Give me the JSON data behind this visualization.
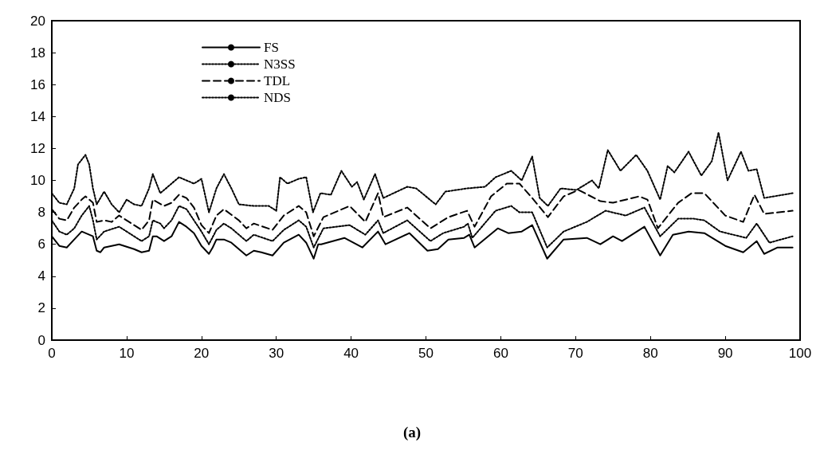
{
  "chart_data": {
    "type": "line",
    "annotations": [
      "(a)"
    ],
    "xlim": [
      0,
      100
    ],
    "xticks": [
      0,
      10,
      20,
      30,
      40,
      50,
      60,
      70,
      80,
      90,
      100
    ],
    "ylim": [
      0,
      20
    ],
    "yticks": [
      0,
      2,
      4,
      6,
      8,
      10,
      12,
      14,
      16,
      18,
      20
    ],
    "grid": false,
    "legend": "top left",
    "marker": "none",
    "series": [
      {
        "name": "FS",
        "color": "#000000",
        "line_style": "solid",
        "x": [
          0,
          1,
          2,
          3,
          4,
          5,
          5.5,
          6,
          6.5,
          7,
          9,
          11,
          12,
          13,
          13.5,
          14,
          15,
          16,
          17,
          18,
          19,
          20,
          21,
          21.5,
          22,
          23,
          24,
          26,
          27,
          28,
          29.5,
          31,
          33,
          34,
          35,
          35.6,
          36,
          39.1,
          41.5,
          43.6,
          44.6,
          47.8,
          50.2,
          51.6,
          53,
          55.1,
          55.8,
          56.5,
          59.6,
          61,
          62.8,
          64.2,
          66.2,
          68.4,
          71.5,
          73.3,
          75,
          76.2,
          79.2,
          81.3,
          83,
          85.1,
          87.2,
          90,
          92.4,
          94.2,
          95.2,
          97,
          99
        ],
        "values": [
          6.5,
          5.9,
          5.8,
          6.3,
          6.8,
          6.6,
          6.5,
          5.6,
          5.5,
          5.8,
          6.0,
          5.7,
          5.5,
          5.6,
          6.5,
          6.5,
          6.2,
          6.5,
          7.4,
          7.1,
          6.7,
          5.9,
          5.4,
          5.8,
          6.3,
          6.3,
          6.1,
          5.3,
          5.6,
          5.5,
          5.3,
          6.1,
          6.6,
          6.1,
          5.1,
          6.0,
          6.0,
          6.4,
          5.8,
          6.8,
          6.0,
          6.7,
          5.6,
          5.7,
          6.3,
          6.4,
          6.6,
          5.8,
          7.0,
          6.7,
          6.8,
          7.2,
          5.1,
          6.3,
          6.4,
          6.0,
          6.5,
          6.2,
          7.1,
          5.3,
          6.6,
          6.8,
          6.7,
          5.9,
          5.5,
          6.2,
          5.4,
          5.8,
          5.8
        ]
      },
      {
        "name": "N3SS",
        "color": "#000000",
        "line_style": "dotted",
        "x": [
          0,
          1,
          2,
          3,
          4,
          5,
          5.5,
          6,
          7,
          9,
          11,
          12,
          13,
          13.5,
          14.5,
          15,
          16,
          17,
          18,
          19,
          20,
          21,
          22,
          23,
          24,
          26,
          27,
          29.5,
          31,
          33,
          34,
          35,
          36.3,
          39.8,
          41.9,
          43.6,
          44.3,
          47.5,
          50.6,
          52.3,
          55.1,
          55.6,
          56.2,
          59.3,
          61.4,
          62.5,
          64.2,
          66.2,
          68.4,
          71.5,
          74,
          76.7,
          79.2,
          81.3,
          83.7,
          85.8,
          87.2,
          89.3,
          92.8,
          94.2,
          95.9,
          99
        ],
        "values": [
          7.5,
          6.8,
          6.6,
          7.0,
          7.8,
          8.4,
          7.5,
          6.3,
          6.8,
          7.1,
          6.5,
          6.2,
          6.5,
          7.5,
          7.3,
          7.0,
          7.5,
          8.4,
          8.2,
          7.5,
          6.8,
          6.0,
          6.9,
          7.3,
          7.0,
          6.2,
          6.6,
          6.2,
          6.9,
          7.5,
          7.1,
          5.8,
          7.0,
          7.2,
          6.6,
          7.5,
          6.7,
          7.5,
          6.2,
          6.7,
          7.1,
          7.3,
          6.4,
          8.1,
          8.4,
          8.0,
          8.0,
          5.8,
          6.8,
          7.4,
          8.1,
          7.8,
          8.3,
          6.5,
          7.6,
          7.6,
          7.5,
          6.8,
          6.4,
          7.3,
          6.1,
          6.5
        ]
      },
      {
        "name": "TDL",
        "color": "#000000",
        "line_style": "dashed",
        "x": [
          0,
          1,
          2,
          3,
          4,
          4.5,
          5.5,
          6,
          7,
          8,
          9,
          11,
          12,
          13,
          13.5,
          15,
          16,
          17,
          18,
          19,
          20,
          21,
          22,
          23,
          25,
          26,
          27,
          29.5,
          31,
          33,
          34,
          35,
          36.3,
          39.8,
          41.9,
          43.6,
          44.3,
          47.5,
          50.6,
          53,
          55.5,
          56.5,
          58.7,
          60.8,
          62.5,
          64.2,
          66.3,
          68.4,
          70.4,
          73.3,
          75,
          78.5,
          79.6,
          81,
          83.7,
          85.5,
          87.2,
          90,
          92.4,
          93.9,
          95.2,
          99
        ],
        "values": [
          8.2,
          7.6,
          7.5,
          8.3,
          8.8,
          9.0,
          8.6,
          7.4,
          7.5,
          7.4,
          7.8,
          7.2,
          6.9,
          7.5,
          8.8,
          8.4,
          8.6,
          9.1,
          8.9,
          8.3,
          7.2,
          6.7,
          7.8,
          8.2,
          7.5,
          7.0,
          7.3,
          6.9,
          7.8,
          8.4,
          8.0,
          6.5,
          7.7,
          8.4,
          7.4,
          9.2,
          7.7,
          8.3,
          7.0,
          7.7,
          8.1,
          7.1,
          9.0,
          9.8,
          9.8,
          8.9,
          7.7,
          9.0,
          9.4,
          8.7,
          8.6,
          9.0,
          8.8,
          7.0,
          8.6,
          9.2,
          9.2,
          7.8,
          7.4,
          9.1,
          7.9,
          8.1
        ]
      },
      {
        "name": "NDS",
        "color": "#000000",
        "line_style": "dotted",
        "x": [
          0,
          1,
          2,
          3,
          3.5,
          4,
          4.5,
          5,
          5.5,
          6,
          7,
          8,
          9,
          10,
          11,
          12,
          13,
          13.5,
          14.5,
          16,
          17,
          18,
          19,
          20,
          21,
          22,
          23,
          24,
          25,
          27,
          29,
          30,
          30.5,
          31.5,
          33,
          34,
          34.9,
          35.9,
          37.3,
          38.7,
          40.1,
          40.8,
          41.7,
          43.2,
          44.3,
          47.5,
          48.7,
          51.3,
          52.6,
          55.5,
          57.9,
          59.3,
          61.4,
          62.8,
          64.2,
          65.2,
          66.3,
          68,
          70.1,
          72.2,
          73.1,
          74.3,
          76,
          78.1,
          79.6,
          81.3,
          82.3,
          83.2,
          85.1,
          86.8,
          88.2,
          89.1,
          90.3,
          92.1,
          93.1,
          94.2,
          95.2,
          99
        ],
        "values": [
          9.2,
          8.6,
          8.5,
          9.5,
          11.0,
          11.3,
          11.6,
          11.0,
          9.5,
          8.5,
          9.3,
          8.5,
          8.0,
          8.8,
          8.5,
          8.4,
          9.5,
          10.4,
          9.2,
          9.8,
          10.2,
          10.0,
          9.8,
          10.1,
          8.0,
          9.5,
          10.4,
          9.5,
          8.5,
          8.4,
          8.4,
          8.1,
          10.2,
          9.8,
          10.1,
          10.2,
          8.0,
          9.2,
          9.1,
          10.6,
          9.6,
          9.9,
          8.8,
          10.4,
          8.9,
          9.6,
          9.5,
          8.5,
          9.3,
          9.5,
          9.6,
          10.2,
          10.6,
          10.0,
          11.5,
          8.9,
          8.4,
          9.5,
          9.4,
          10.0,
          9.5,
          11.9,
          10.6,
          11.6,
          10.6,
          8.8,
          10.9,
          10.5,
          11.8,
          10.3,
          11.2,
          13.0,
          10.0,
          11.8,
          10.6,
          10.7,
          8.9,
          9.2
        ]
      }
    ]
  }
}
